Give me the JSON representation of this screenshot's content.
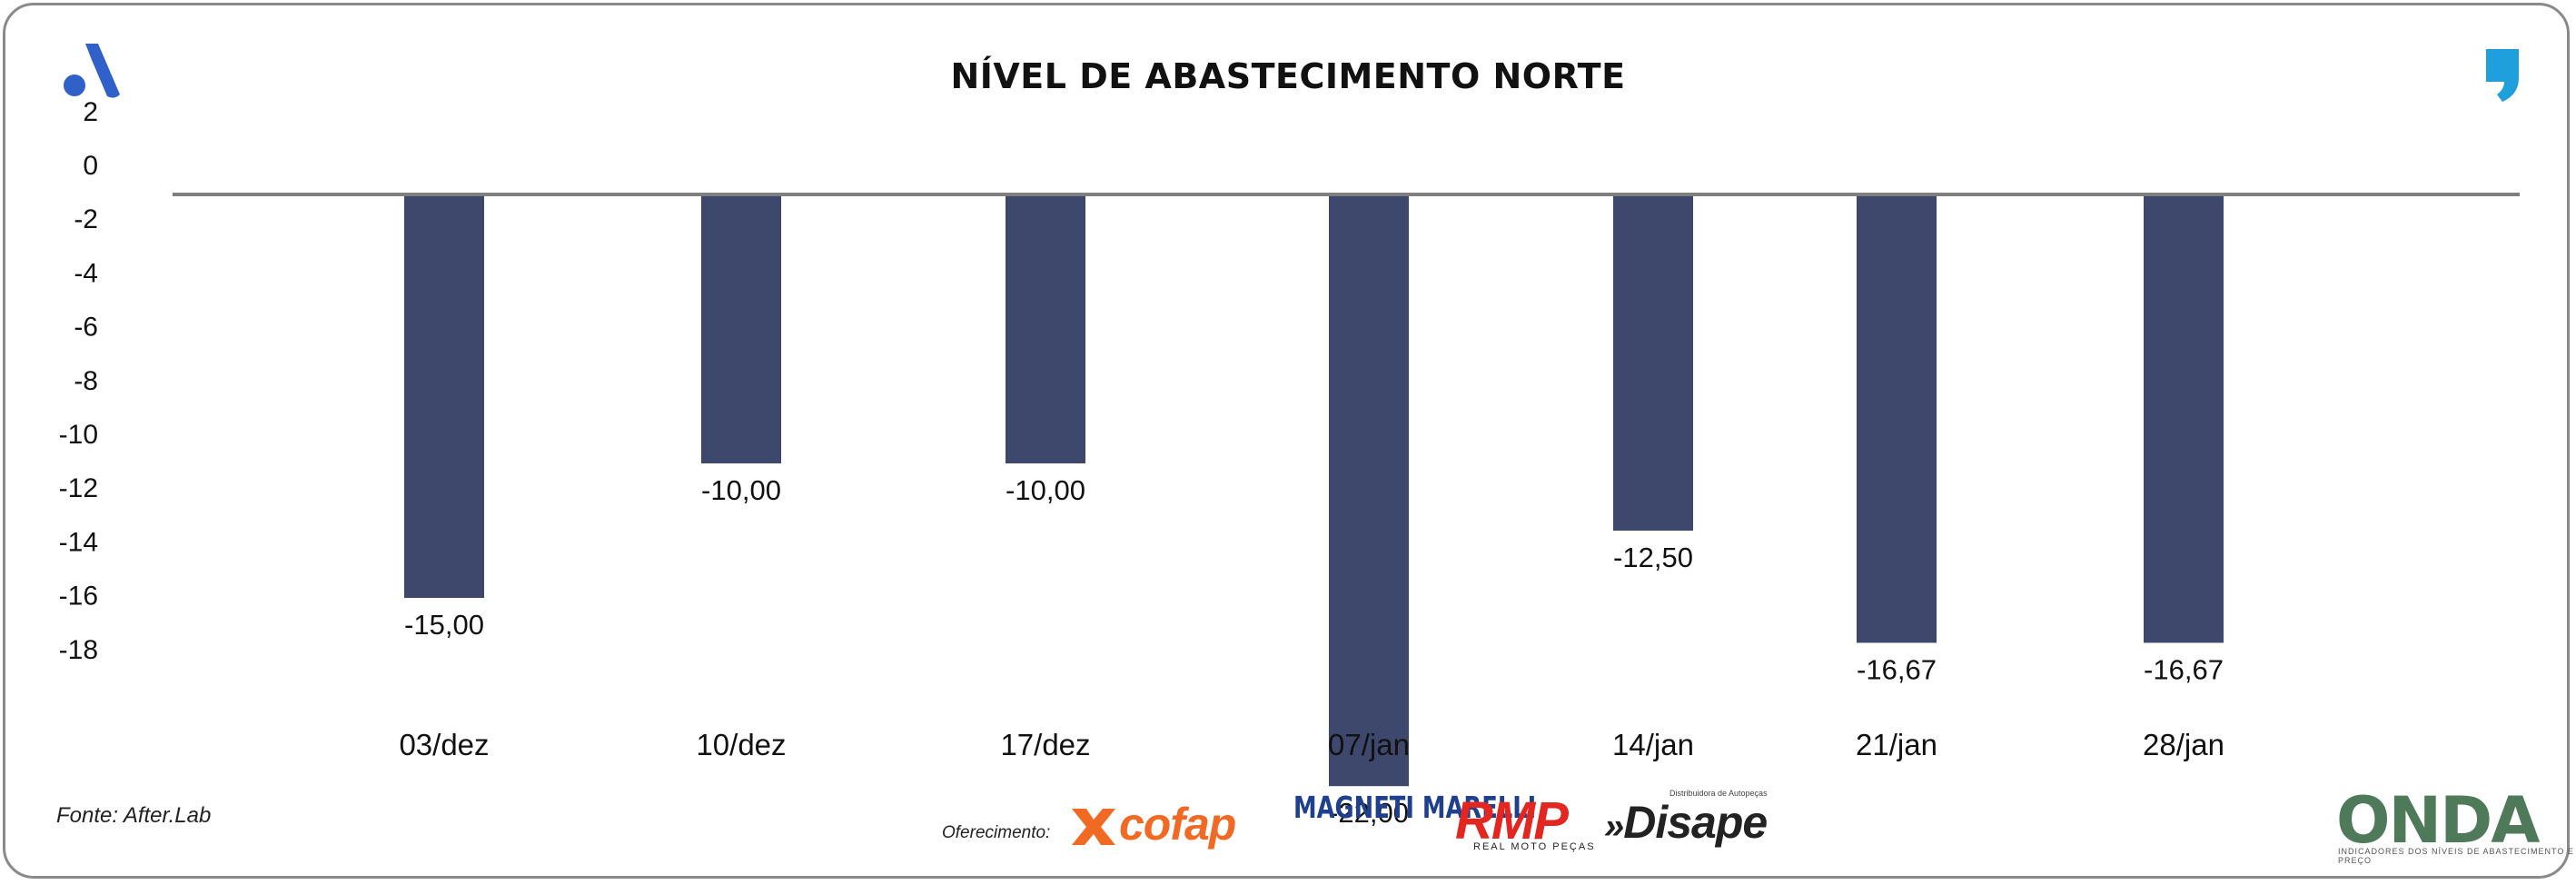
{
  "header": {
    "title": "NÍVEL DE ABASTECIMENTO NORTE",
    "left_logo_icon": "stylized-a-logo-icon",
    "right_logo_icon": "comma-logo-icon"
  },
  "footer": {
    "source": "Fonte: After.Lab",
    "sponsor_label": "Oferecimento:",
    "sponsors": [
      "cofap",
      "MAGNETI MARELLI",
      "RMP",
      "REAL MOTO PEÇAS",
      "Disape",
      "Distribuidora de Autopeças"
    ],
    "brand_logo": "ONDA",
    "brand_tagline": "INDICADORES DOS NÍVEIS DE ABASTECIMENTO E PREÇO"
  },
  "colors": {
    "bar": "#3e476c",
    "baseline": "#7f7f7f",
    "frame": "#8a8a8a",
    "logo_blue": "#2f61c9",
    "comma_blue": "#1fa0dc"
  },
  "chart_data": {
    "type": "bar",
    "title": "NÍVEL DE ABASTECIMENTO NORTE",
    "categories": [
      "03/dez",
      "10/dez",
      "17/dez",
      "07/jan",
      "14/jan",
      "21/jan",
      "28/jan"
    ],
    "values": [
      -15.0,
      -10.0,
      -10.0,
      -22.0,
      -12.5,
      -16.67,
      -16.67
    ],
    "value_labels": [
      "-15,00",
      "-10,00",
      "-10,00",
      "-22,00",
      "-12,50",
      "-16,67",
      "-16,67"
    ],
    "y_ticks": [
      "2",
      "0",
      "-2",
      "-4",
      "-6",
      "-8",
      "-10",
      "-12",
      "-14",
      "-16",
      "-18"
    ],
    "y_tick_values": [
      2,
      0,
      -2,
      -4,
      -6,
      -8,
      -10,
      -12,
      -14,
      -16,
      -18
    ],
    "xlabel": "",
    "ylabel": "",
    "ylim": [
      -18,
      2
    ],
    "grid": false,
    "legend": "none"
  }
}
